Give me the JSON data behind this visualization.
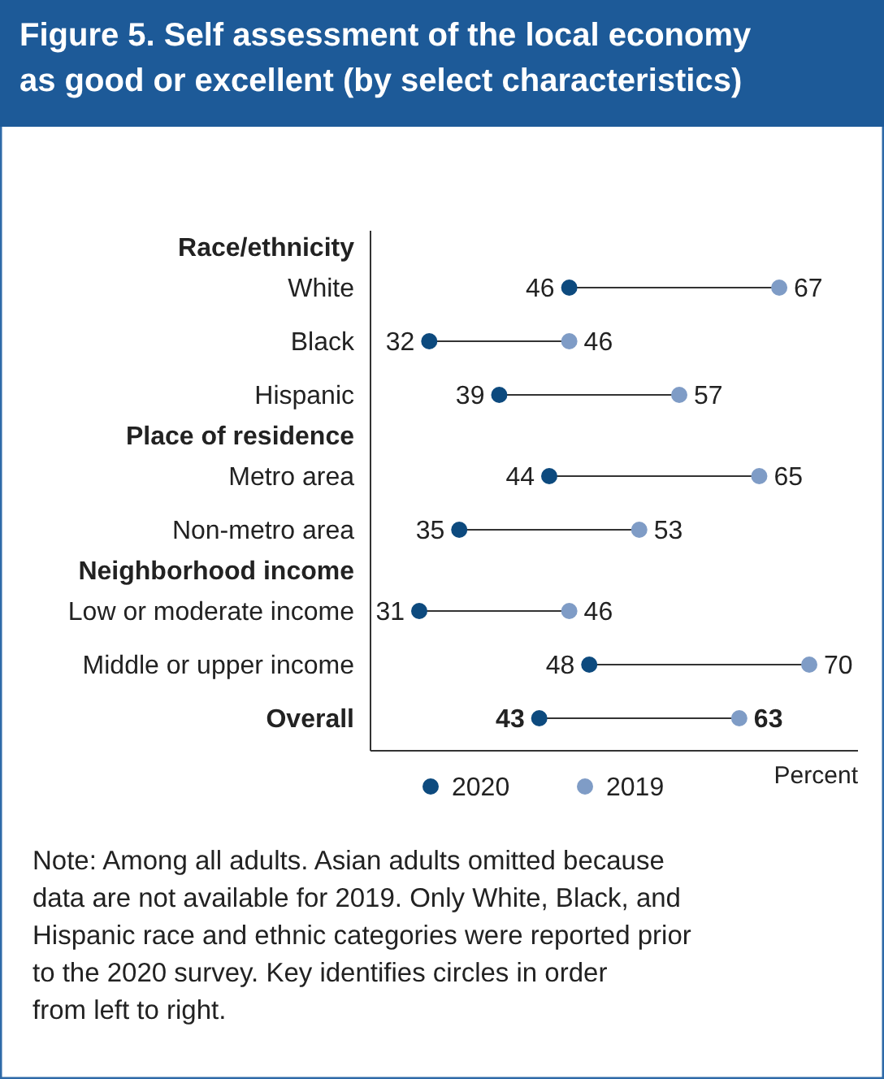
{
  "chart_data": {
    "type": "scatter",
    "title": "Figure 5. Self assessment of the local economy as good or excellent (by select characteristics)",
    "categories": [
      "Race/ethnicity",
      "White",
      "Black",
      "Hispanic",
      "Place of residence",
      "Metro area",
      "Non-metro area",
      "Neighborhood income",
      "Low or moderate income",
      "Middle or upper income",
      "Overall"
    ],
    "series": [
      {
        "name": "2020",
        "color": "#0d4a7e",
        "values": [
          null,
          46,
          32,
          39,
          null,
          44,
          35,
          null,
          31,
          48,
          43
        ]
      },
      {
        "name": "2019",
        "color": "#7f9cc6",
        "values": [
          null,
          67,
          46,
          57,
          null,
          65,
          53,
          null,
          46,
          70,
          63
        ]
      }
    ],
    "xlabel": "Percent",
    "orientation": "horizontal",
    "data_labels": true,
    "legend": "bottom",
    "marker": "circle",
    "annotations": [
      "Note: Among all adults. Asian adults omitted because data are not available for 2019. Only White, Black, and Hispanic race and ethnic categories were reported prior to the 2020 survey. Key identifies circles in order from left to right."
    ]
  }
}
